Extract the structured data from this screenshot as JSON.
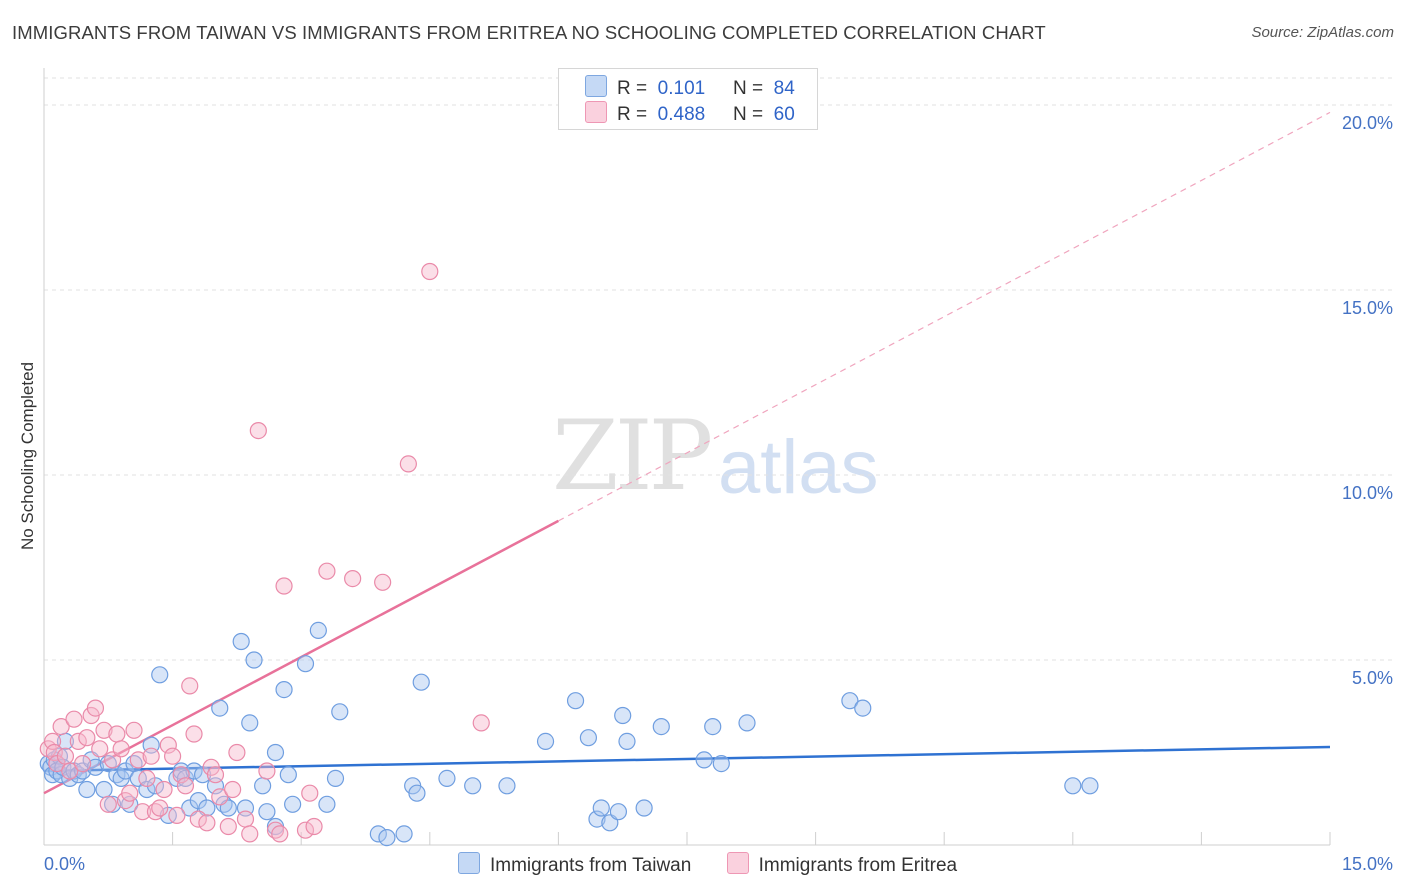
{
  "header": {
    "title": "IMMIGRANTS FROM TAIWAN VS IMMIGRANTS FROM ERITREA NO SCHOOLING COMPLETED CORRELATION CHART",
    "source": "Source: ZipAtlas.com"
  },
  "watermark": {
    "zip": "ZIP",
    "atlas": "atlas"
  },
  "legend": {
    "rows": [
      {
        "r_label": "R =",
        "r_value": "0.101",
        "n_label": "N =",
        "n_value": "84",
        "color": "#a9c6ef"
      },
      {
        "r_label": "R =",
        "r_value": "0.488",
        "n_label": "N =",
        "n_value": "60",
        "color": "#f6b9cc"
      }
    ]
  },
  "bottom_legend": {
    "items": [
      {
        "label": "Immigrants from Taiwan",
        "color": "#a9c6ef"
      },
      {
        "label": "Immigrants from Eritrea",
        "color": "#f6b9cc"
      }
    ]
  },
  "chart_data": {
    "type": "scatter",
    "title": "IMMIGRANTS FROM TAIWAN VS IMMIGRANTS FROM ERITREA NO SCHOOLING COMPLETED CORRELATION CHART",
    "xlabel": "",
    "ylabel": "No Schooling Completed",
    "xlim": [
      0,
      15
    ],
    "ylim": [
      0,
      21
    ],
    "x_ticks": [
      "0.0%",
      "15.0%"
    ],
    "y_ticks": [
      {
        "value": 5,
        "label": "5.0%"
      },
      {
        "value": 10,
        "label": "10.0%"
      },
      {
        "value": 15,
        "label": "15.0%"
      },
      {
        "value": 20,
        "label": "20.0%"
      }
    ],
    "grid": true,
    "legend_position": "top-center",
    "series": [
      {
        "name": "Immigrants from Taiwan",
        "color": "#a9c6ef",
        "stroke": "#6f9ee0",
        "trend": {
          "x0": 0,
          "y0": 2.0,
          "x1": 15,
          "y1": 2.65,
          "color": "#2f72d2",
          "dashed_after": null
        },
        "points": [
          [
            0.05,
            2.2
          ],
          [
            0.08,
            2.1
          ],
          [
            0.1,
            1.9
          ],
          [
            0.12,
            2.3
          ],
          [
            0.15,
            2.0
          ],
          [
            0.18,
            2.4
          ],
          [
            0.2,
            1.9
          ],
          [
            0.22,
            2.1
          ],
          [
            0.25,
            2.8
          ],
          [
            0.3,
            1.8
          ],
          [
            0.35,
            2.0
          ],
          [
            0.4,
            1.9
          ],
          [
            0.45,
            2.0
          ],
          [
            0.5,
            1.5
          ],
          [
            0.55,
            2.3
          ],
          [
            0.6,
            2.1
          ],
          [
            0.7,
            1.5
          ],
          [
            0.75,
            2.2
          ],
          [
            0.8,
            1.1
          ],
          [
            0.85,
            1.9
          ],
          [
            0.9,
            1.8
          ],
          [
            0.95,
            2.0
          ],
          [
            1.0,
            1.1
          ],
          [
            1.05,
            2.2
          ],
          [
            1.1,
            1.8
          ],
          [
            1.2,
            1.5
          ],
          [
            1.25,
            2.7
          ],
          [
            1.3,
            1.6
          ],
          [
            1.35,
            4.6
          ],
          [
            1.45,
            0.8
          ],
          [
            1.55,
            1.8
          ],
          [
            1.6,
            2.0
          ],
          [
            1.65,
            1.8
          ],
          [
            1.7,
            1.0
          ],
          [
            1.75,
            2.0
          ],
          [
            1.8,
            1.2
          ],
          [
            1.85,
            1.9
          ],
          [
            1.9,
            1.0
          ],
          [
            2.0,
            1.6
          ],
          [
            2.05,
            3.7
          ],
          [
            2.1,
            1.1
          ],
          [
            2.15,
            1.0
          ],
          [
            2.3,
            5.5
          ],
          [
            2.35,
            1.0
          ],
          [
            2.4,
            3.3
          ],
          [
            2.45,
            5.0
          ],
          [
            2.55,
            1.6
          ],
          [
            2.6,
            0.9
          ],
          [
            2.7,
            2.5
          ],
          [
            2.7,
            0.5
          ],
          [
            2.8,
            4.2
          ],
          [
            2.85,
            1.9
          ],
          [
            2.9,
            1.1
          ],
          [
            3.05,
            4.9
          ],
          [
            3.2,
            5.8
          ],
          [
            3.3,
            1.1
          ],
          [
            3.4,
            1.8
          ],
          [
            3.45,
            3.6
          ],
          [
            3.9,
            0.3
          ],
          [
            4.0,
            0.2
          ],
          [
            4.2,
            0.3
          ],
          [
            4.3,
            1.6
          ],
          [
            4.35,
            1.4
          ],
          [
            4.4,
            4.4
          ],
          [
            4.7,
            1.8
          ],
          [
            5.0,
            1.6
          ],
          [
            5.4,
            1.6
          ],
          [
            5.85,
            2.8
          ],
          [
            6.2,
            3.9
          ],
          [
            6.35,
            2.9
          ],
          [
            6.45,
            0.7
          ],
          [
            6.5,
            1.0
          ],
          [
            6.6,
            0.6
          ],
          [
            6.7,
            0.9
          ],
          [
            6.75,
            3.5
          ],
          [
            6.8,
            2.8
          ],
          [
            7.0,
            1.0
          ],
          [
            7.2,
            3.2
          ],
          [
            7.7,
            2.3
          ],
          [
            7.8,
            3.2
          ],
          [
            7.9,
            2.2
          ],
          [
            8.2,
            3.3
          ],
          [
            9.4,
            3.9
          ],
          [
            9.55,
            3.7
          ],
          [
            12.0,
            1.6
          ],
          [
            12.2,
            1.6
          ]
        ]
      },
      {
        "name": "Immigrants from Eritrea",
        "color": "#f6b9cc",
        "stroke": "#ea8aa9",
        "trend": {
          "x0": 0,
          "y0": 1.4,
          "x1": 15,
          "y1": 19.8,
          "solid_until": 6.0,
          "color": "#e8729a"
        },
        "points": [
          [
            0.05,
            2.6
          ],
          [
            0.1,
            2.8
          ],
          [
            0.12,
            2.5
          ],
          [
            0.15,
            2.2
          ],
          [
            0.2,
            3.2
          ],
          [
            0.25,
            2.4
          ],
          [
            0.3,
            2.0
          ],
          [
            0.35,
            3.4
          ],
          [
            0.4,
            2.8
          ],
          [
            0.45,
            2.2
          ],
          [
            0.5,
            2.9
          ],
          [
            0.55,
            3.5
          ],
          [
            0.6,
            3.7
          ],
          [
            0.65,
            2.6
          ],
          [
            0.7,
            3.1
          ],
          [
            0.75,
            1.1
          ],
          [
            0.8,
            2.3
          ],
          [
            0.85,
            3.0
          ],
          [
            0.9,
            2.6
          ],
          [
            0.95,
            1.2
          ],
          [
            1.0,
            1.4
          ],
          [
            1.05,
            3.1
          ],
          [
            1.1,
            2.3
          ],
          [
            1.15,
            0.9
          ],
          [
            1.2,
            1.8
          ],
          [
            1.25,
            2.4
          ],
          [
            1.3,
            0.9
          ],
          [
            1.35,
            1.0
          ],
          [
            1.4,
            1.5
          ],
          [
            1.45,
            2.7
          ],
          [
            1.5,
            2.4
          ],
          [
            1.55,
            0.8
          ],
          [
            1.6,
            1.9
          ],
          [
            1.65,
            1.6
          ],
          [
            1.7,
            4.3
          ],
          [
            1.75,
            3.0
          ],
          [
            1.8,
            0.7
          ],
          [
            1.9,
            0.6
          ],
          [
            1.95,
            2.1
          ],
          [
            2.0,
            1.9
          ],
          [
            2.05,
            1.3
          ],
          [
            2.15,
            0.5
          ],
          [
            2.2,
            1.5
          ],
          [
            2.25,
            2.5
          ],
          [
            2.35,
            0.7
          ],
          [
            2.4,
            0.3
          ],
          [
            2.5,
            11.2
          ],
          [
            2.6,
            2.0
          ],
          [
            2.7,
            0.4
          ],
          [
            2.75,
            0.3
          ],
          [
            2.8,
            7.0
          ],
          [
            3.05,
            0.4
          ],
          [
            3.1,
            1.4
          ],
          [
            3.15,
            0.5
          ],
          [
            3.3,
            7.4
          ],
          [
            3.6,
            7.2
          ],
          [
            3.95,
            7.1
          ],
          [
            4.25,
            10.3
          ],
          [
            4.5,
            15.5
          ],
          [
            5.1,
            3.3
          ]
        ]
      }
    ]
  }
}
